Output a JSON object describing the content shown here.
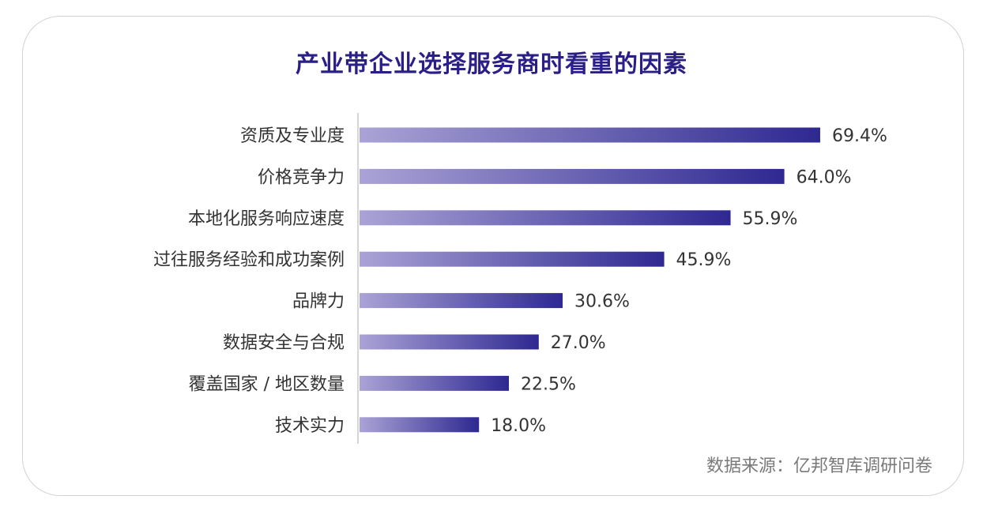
{
  "chart_data": {
    "type": "bar",
    "orientation": "horizontal",
    "title": "产业带企业选择服务商时看重的因素",
    "categories": [
      "资质及专业度",
      "价格竞争力",
      "本地化服务响应速度",
      "过往服务经验和成功案例",
      "品牌力",
      "数据安全与合规",
      "覆盖国家 / 地区数量",
      "技术实力"
    ],
    "values": [
      69.4,
      64.0,
      55.9,
      45.9,
      30.6,
      27.0,
      22.5,
      18.0
    ],
    "value_labels": [
      "69.4%",
      "64.0%",
      "55.9%",
      "45.9%",
      "30.6%",
      "27.0%",
      "22.5%",
      "18.0%"
    ],
    "unit": "%",
    "xlim": [
      0,
      100
    ],
    "grid": false,
    "legend": "none",
    "bar_gradient": [
      "#aaa3d6",
      "#2e2891"
    ]
  },
  "source": "数据来源：亿邦智库调研问卷",
  "colors": {
    "title": "#2a1f86",
    "label": "#333333",
    "source": "#7a7a7a",
    "axis": "#c8c8c8"
  }
}
